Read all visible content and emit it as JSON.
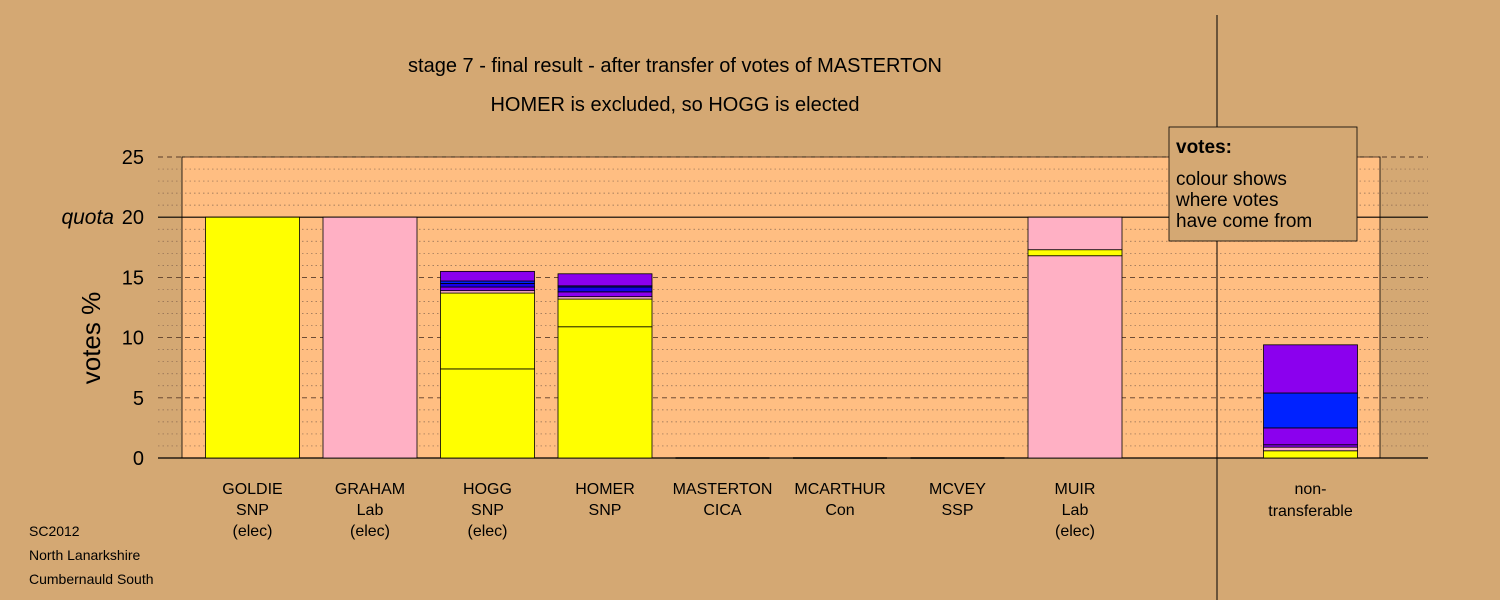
{
  "chart_data": {
    "type": "bar",
    "stacked": true,
    "title": "stage 7 - final result - after transfer of votes of MASTERTON",
    "subtitle": "HOMER is excluded, so HOGG is elected",
    "ylabel": "votes %",
    "ylim": [
      0,
      25
    ],
    "yticks": [
      0,
      5,
      10,
      15,
      20,
      25
    ],
    "quota": 20,
    "quota_label": "quota",
    "grid": "major dashed, minor dotted",
    "legend": {
      "title": "votes:",
      "lines": [
        "colour shows",
        "where votes",
        "have come from"
      ],
      "placement": "top-right"
    },
    "colors": {
      "SNP": "#ffff00",
      "Lab": "#ffb0c4",
      "CICA": "#8b00ee",
      "SSP": "#0022ff",
      "Con": "#1800e8",
      "background": "#d4a873",
      "plot": "#ffbe82"
    },
    "bars": [
      {
        "name": "GOLDIE",
        "party": "SNP",
        "status": "(elec)",
        "total": 20,
        "segments": [
          {
            "from": "SNP",
            "value": 20
          }
        ]
      },
      {
        "name": "GRAHAM",
        "party": "Lab",
        "status": "(elec)",
        "total": 20,
        "segments": [
          {
            "from": "Lab",
            "value": 20
          }
        ]
      },
      {
        "name": "HOGG",
        "party": "SNP",
        "status": "(elec)",
        "total": 15.5,
        "segments": [
          {
            "from": "SNP",
            "value": 7.4
          },
          {
            "from": "SNP",
            "value": 6.3
          },
          {
            "from": "Lab",
            "value": 0.2
          },
          {
            "from": "CICA",
            "value": 0.3
          },
          {
            "from": "Con",
            "value": 0.3
          },
          {
            "from": "SSP",
            "value": 0.2
          },
          {
            "from": "CICA",
            "value": 0.8
          }
        ]
      },
      {
        "name": "HOMER",
        "party": "SNP",
        "status": "",
        "total": 15.3,
        "segments": [
          {
            "from": "SNP",
            "value": 10.9
          },
          {
            "from": "SNP",
            "value": 2.3
          },
          {
            "from": "Lab",
            "value": 0.2
          },
          {
            "from": "CICA",
            "value": 0.4
          },
          {
            "from": "Con",
            "value": 0.4
          },
          {
            "from": "SSP",
            "value": 0.1
          },
          {
            "from": "CICA",
            "value": 1.0
          }
        ]
      },
      {
        "name": "MASTERTON",
        "party": "CICA",
        "status": "",
        "total": 0,
        "segments": []
      },
      {
        "name": "MCARTHUR",
        "party": "Con",
        "status": "",
        "total": 0,
        "segments": []
      },
      {
        "name": "MCVEY",
        "party": "SSP",
        "status": "",
        "total": 0,
        "segments": []
      },
      {
        "name": "MUIR",
        "party": "Lab",
        "status": "(elec)",
        "total": 20,
        "segments": [
          {
            "from": "Lab",
            "value": 16.8
          },
          {
            "from": "SNP",
            "value": 0.5
          },
          {
            "from": "Lab",
            "value": 2.7
          }
        ]
      }
    ],
    "nontransferable": {
      "label_line1": "non-",
      "label_line2": "transferable",
      "total": 9.4,
      "segments": [
        {
          "from": "SNP",
          "value": 0.6
        },
        {
          "from": "Lab",
          "value": 0.3
        },
        {
          "from": "CICA",
          "value": 0.2
        },
        {
          "from": "CICA",
          "value": 1.4
        },
        {
          "from": "SSP",
          "value": 2.9
        },
        {
          "from": "CICA",
          "value": 4.0
        }
      ]
    }
  },
  "footer": {
    "line1": "SC2012",
    "line2": "North Lanarkshire",
    "line3": "Cumbernauld South"
  }
}
